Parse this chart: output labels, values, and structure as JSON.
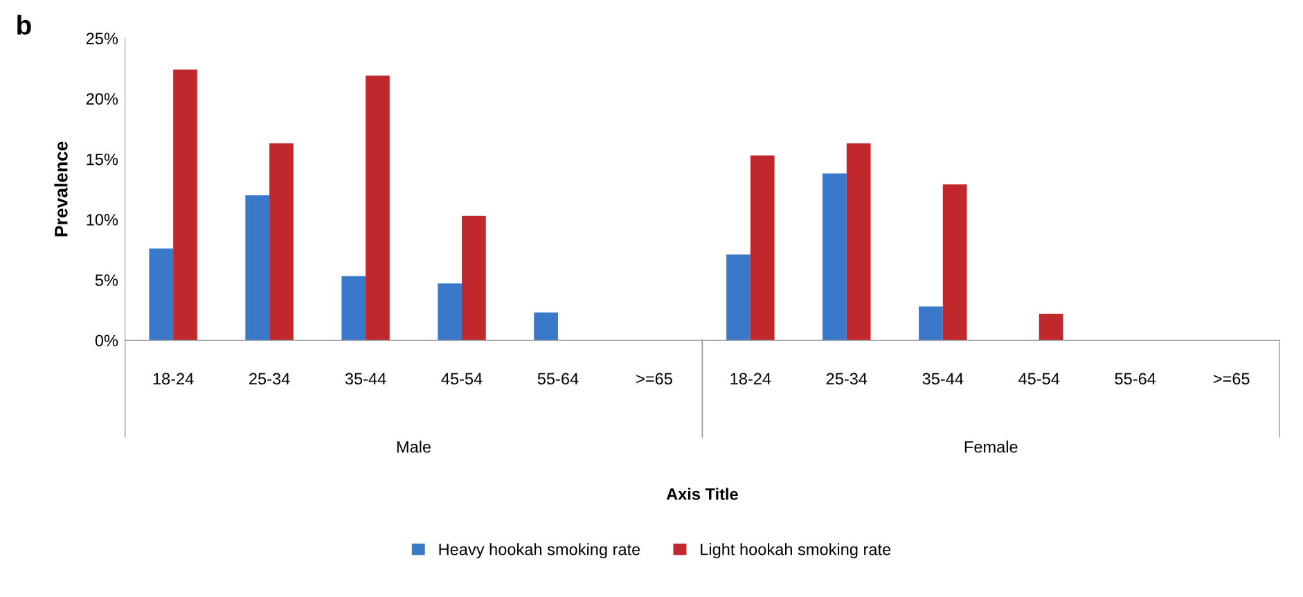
{
  "chart_data": [
    {
      "type": "bar",
      "title": "b",
      "ylabel": "Prevalence",
      "xlabel": "Male",
      "categories": [
        "18-24",
        "25-34",
        "35-44",
        "45-54",
        "55-64",
        ">=65"
      ],
      "series": [
        {
          "name": "Heavy hookah smoking rate",
          "color": "#3a78c9",
          "values": [
            7.6,
            12.0,
            5.3,
            4.7,
            2.3,
            0
          ]
        },
        {
          "name": "Light hookah smoking rate",
          "color": "#c0282d",
          "values": [
            22.4,
            16.3,
            21.9,
            10.3,
            0,
            0
          ]
        }
      ],
      "ylim": [
        0,
        25
      ],
      "yticks": [
        {
          "value": 0,
          "label": "0%"
        },
        {
          "value": 5,
          "label": "5%"
        },
        {
          "value": 10,
          "label": "10%"
        },
        {
          "value": 15,
          "label": "15%"
        },
        {
          "value": 20,
          "label": "20%"
        },
        {
          "value": 25,
          "label": "25%"
        }
      ],
      "legend": "bottom",
      "grid": false
    },
    {
      "type": "bar",
      "xlabel": "Female",
      "annotations": [
        "Axis Title"
      ],
      "categories": [
        "18-24",
        "25-34",
        "35-44",
        "45-54",
        "55-64",
        ">=65"
      ],
      "series": [
        {
          "color": "#3a78c9",
          "values": [
            7.1,
            13.8,
            2.8,
            0,
            0,
            0
          ]
        },
        {
          "color": "#c0282d",
          "values": [
            15.3,
            16.3,
            12.9,
            2.2,
            0,
            0
          ]
        }
      ],
      "ylim": [
        0,
        25
      ],
      "tick_labels": "x",
      "grid": false
    }
  ]
}
